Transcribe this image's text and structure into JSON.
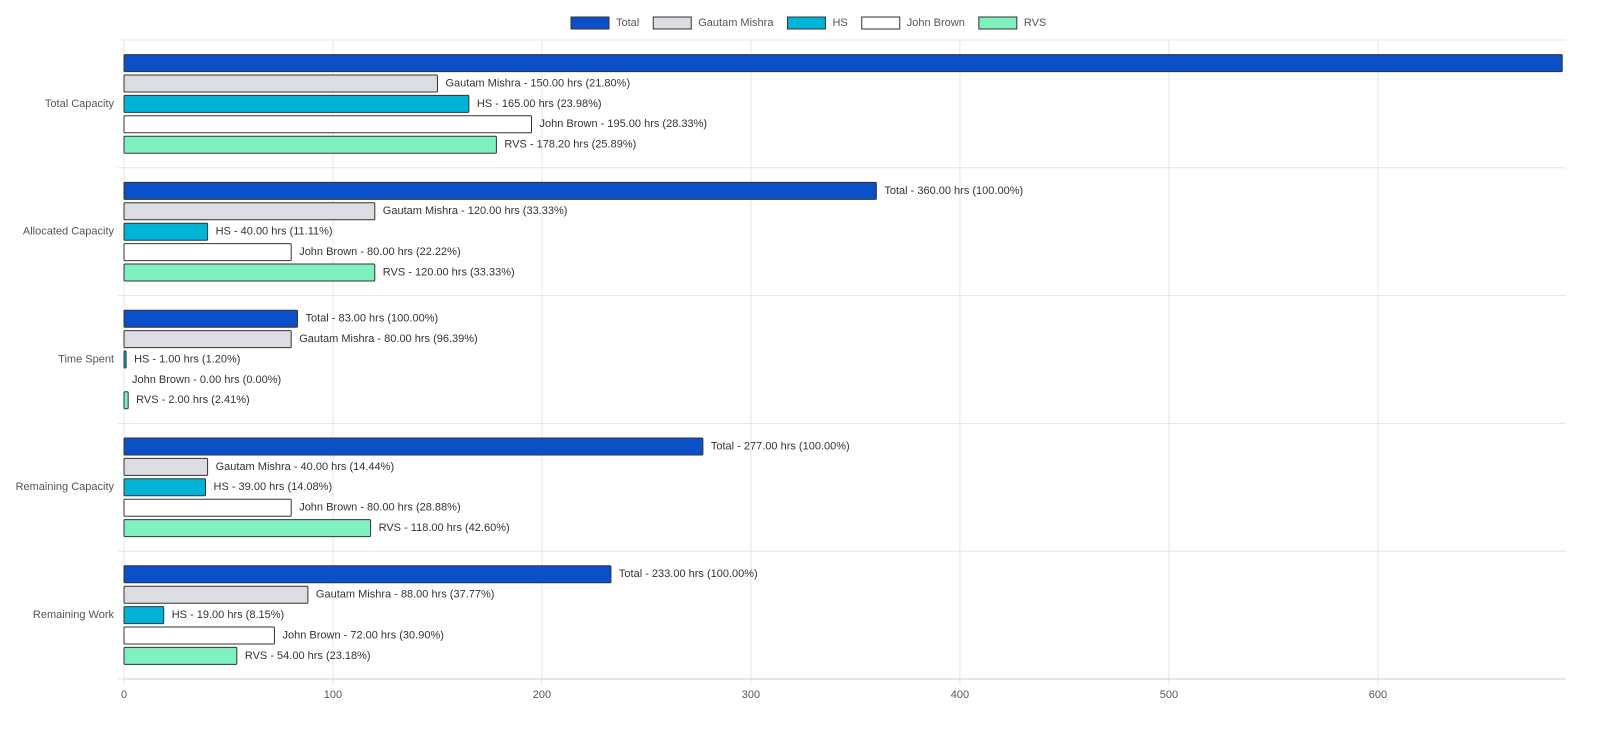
{
  "chart_data": {
    "type": "hbar",
    "categories": [
      "Total Capacity",
      "Allocated Capacity",
      "Time Spent",
      "Remaining Capacity",
      "Remaining Work"
    ],
    "series": [
      {
        "name": "Total",
        "color": "#0b4fc9",
        "values": [
          688.2,
          360,
          83,
          277,
          233
        ],
        "value_labels": [
          null,
          "Total - 360.00 hrs (100.00%)",
          "Total - 83.00 hrs (100.00%)",
          "Total - 277.00 hrs (100.00%)",
          "Total - 233.00 hrs (100.00%)"
        ]
      },
      {
        "name": "Gautam Mishra",
        "color": "#dcdce3",
        "values": [
          150,
          120,
          80,
          40,
          88
        ],
        "value_labels": [
          "Gautam Mishra - 150.00 hrs (21.80%)",
          "Gautam Mishra - 120.00 hrs (33.33%)",
          "Gautam Mishra - 80.00 hrs (96.39%)",
          "Gautam Mishra - 40.00 hrs (14.44%)",
          "Gautam Mishra - 88.00 hrs (37.77%)"
        ]
      },
      {
        "name": "HS",
        "color": "#00b4d8",
        "values": [
          165,
          40,
          1,
          39,
          19
        ],
        "value_labels": [
          "HS - 165.00 hrs (23.98%)",
          "HS - 40.00 hrs (11.11%)",
          "HS - 1.00 hrs (1.20%)",
          "HS - 39.00 hrs (14.08%)",
          "HS - 19.00 hrs (8.15%)"
        ]
      },
      {
        "name": "John Brown",
        "color": "#ffffff",
        "values": [
          195,
          80,
          0,
          80,
          72
        ],
        "value_labels": [
          "John Brown - 195.00 hrs (28.33%)",
          "John Brown - 80.00 hrs (22.22%)",
          "John Brown - 0.00 hrs (0.00%)",
          "John Brown - 80.00 hrs (28.88%)",
          "John Brown - 72.00 hrs (30.90%)"
        ]
      },
      {
        "name": "RVS",
        "color": "#7ff0be",
        "values": [
          178.2,
          120,
          2,
          118,
          54
        ],
        "value_labels": [
          "RVS - 178.20 hrs (25.89%)",
          "RVS - 120.00 hrs (33.33%)",
          "RVS - 2.00 hrs (2.41%)",
          "RVS - 118.00 hrs (42.60%)",
          "RVS - 54.00 hrs (23.18%)"
        ]
      }
    ],
    "xlim": [
      0,
      690
    ],
    "xticks": [
      0,
      100,
      200,
      300,
      400,
      500,
      600
    ],
    "grid": true,
    "legend": "top"
  }
}
